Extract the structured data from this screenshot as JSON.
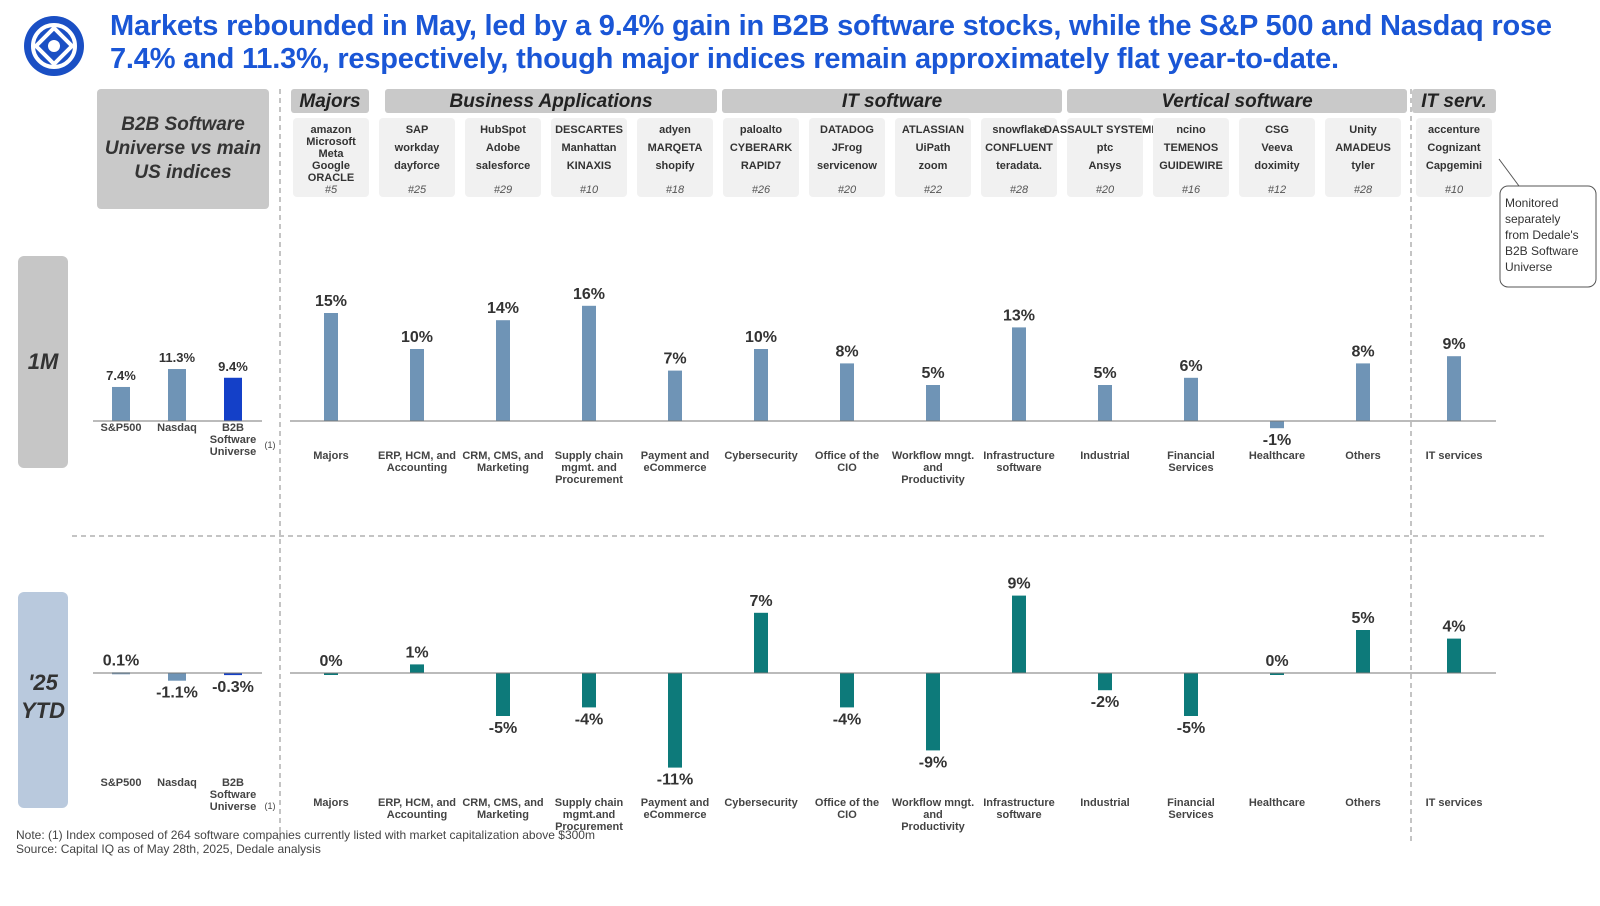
{
  "headline": {
    "line1": "Markets rebounded in May, led by a 9.4% gain in B2B software stocks, while the S&P 500 and Nasdaq rose",
    "line2": "7.4% and 11.3%, respectively, though major indices remain approximately flat year-to-date."
  },
  "left_title": [
    "B2B Software",
    "Universe vs main",
    "US indices"
  ],
  "groups": [
    "Majors",
    "Business Applications",
    "IT software",
    "Vertical software",
    "IT serv."
  ],
  "logos": [
    {
      "names": [
        "amazon",
        "Microsoft",
        "Meta",
        "Google",
        "ORACLE"
      ],
      "count": "#5"
    },
    {
      "names": [
        "SAP",
        "workday",
        "dayforce"
      ],
      "count": "#25"
    },
    {
      "names": [
        "HubSpot",
        "Adobe",
        "salesforce"
      ],
      "count": "#29"
    },
    {
      "names": [
        "DESCARTES",
        "Manhattan",
        "KINAXIS"
      ],
      "count": "#10"
    },
    {
      "names": [
        "adyen",
        "MARQETA",
        "shopify"
      ],
      "count": "#18"
    },
    {
      "names": [
        "paloalto",
        "CYBERARK",
        "RAPID7"
      ],
      "count": "#26"
    },
    {
      "names": [
        "DATADOG",
        "JFrog",
        "servicenow"
      ],
      "count": "#20"
    },
    {
      "names": [
        "ATLASSIAN",
        "UiPath",
        "zoom"
      ],
      "count": "#22"
    },
    {
      "names": [
        "snowflake",
        "CONFLUENT",
        "teradata."
      ],
      "count": "#28"
    },
    {
      "names": [
        "DASSAULT SYSTEMES",
        "ptc",
        "Ansys"
      ],
      "count": "#20"
    },
    {
      "names": [
        "ncino",
        "TEMENOS",
        "GUIDEWIRE"
      ],
      "count": "#16"
    },
    {
      "names": [
        "CSG",
        "Veeva",
        "doximity"
      ],
      "count": "#12"
    },
    {
      "names": [
        "Unity",
        "AMADEUS",
        "tyler"
      ],
      "count": "#28"
    },
    {
      "names": [
        "accenture",
        "Cognizant",
        "Capgemini"
      ],
      "count": "#10"
    }
  ],
  "callout": [
    "Monitored",
    "separately",
    "from Dedale's",
    "B2B Software",
    "Universe"
  ],
  "periods": [
    "1M",
    "'25",
    "YTD"
  ],
  "colors": {
    "index_bar": "#6f94b6",
    "b2b_bar": "#1440c8",
    "ytd_bar": "#0d7a7a",
    "headline": "#1a56d6"
  },
  "chart_data": [
    {
      "type": "bar",
      "title": "1M - indices",
      "categories": [
        "S&P500",
        "Nasdaq",
        "B2B Software Universe"
      ],
      "values": [
        7.4,
        11.3,
        9.4
      ],
      "labels": [
        "7.4%",
        "11.3%",
        "9.4%"
      ],
      "footnote": "(1)"
    },
    {
      "type": "bar",
      "title": "1M - segments",
      "categories": [
        "Majors",
        "ERP, HCM, and Accounting",
        "CRM, CMS, and Marketing",
        "Supply chain mgmt. and Procurement",
        "Payment and eCommerce",
        "Cybersecurity",
        "Office of the CIO",
        "Workflow mngt. and Productivity",
        "Infrastructure software",
        "Industrial",
        "Financial Services",
        "Healthcare",
        "Others",
        "IT services"
      ],
      "values": [
        15,
        10,
        14,
        16,
        7,
        10,
        8,
        5,
        13,
        5,
        6,
        -1,
        8,
        9
      ],
      "labels": [
        "15%",
        "10%",
        "14%",
        "16%",
        "7%",
        "10%",
        "8%",
        "5%",
        "13%",
        "5%",
        "6%",
        "-1%",
        "8%",
        "9%"
      ]
    },
    {
      "type": "bar",
      "title": "'25 YTD - indices",
      "categories": [
        "S&P500",
        "Nasdaq",
        "B2B Software Universe"
      ],
      "values": [
        0.1,
        -1.1,
        -0.3
      ],
      "labels": [
        "0.1%",
        "-1.1%",
        "-0.3%"
      ],
      "footnote": "(1)"
    },
    {
      "type": "bar",
      "title": "'25 YTD - segments",
      "categories": [
        "Majors",
        "ERP, HCM, and Accounting",
        "CRM, CMS, and Marketing",
        "Supply chain mgmt.and Procurement",
        "Payment and eCommerce",
        "Cybersecurity",
        "Office of the CIO",
        "Workflow mngt. and Productivity",
        "Infrastructure software",
        "Industrial",
        "Financial Services",
        "Healthcare",
        "Others",
        "IT services"
      ],
      "values": [
        0,
        1,
        -5,
        -4,
        -11,
        7,
        -4,
        -9,
        9,
        -2,
        -5,
        0,
        5,
        4
      ],
      "labels": [
        "0%",
        "1%",
        "-5%",
        "-4%",
        "-11%",
        "7%",
        "-4%",
        "-9%",
        "9%",
        "-2%",
        "-5%",
        "0%",
        "5%",
        "4%"
      ]
    }
  ],
  "notes": {
    "note": "Note: (1) Index composed of 264 software companies currently listed with market capitalization above $300m",
    "source": "Source: Capital IQ as of May 28th, 2025, Dedale analysis"
  }
}
